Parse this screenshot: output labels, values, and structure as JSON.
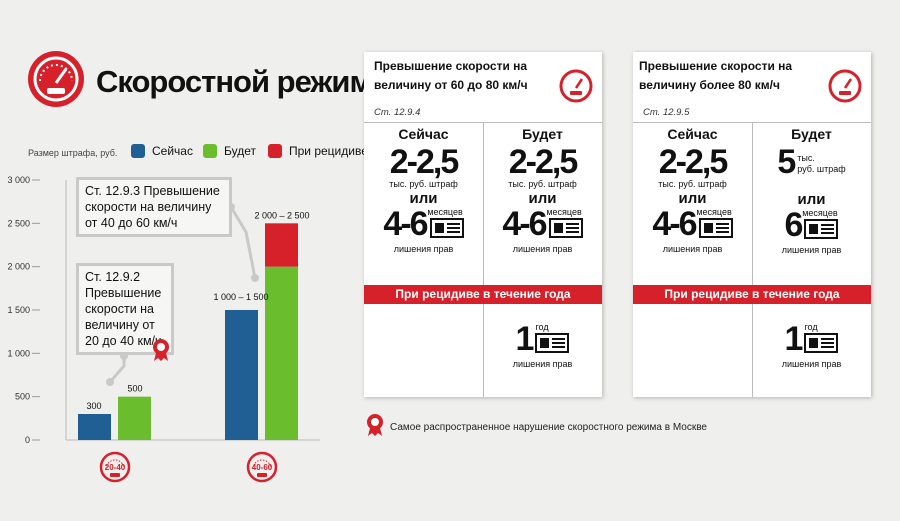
{
  "header": {
    "title": "Скоростной режим"
  },
  "legend": {
    "caption": "Размер штрафа, руб.",
    "items": [
      {
        "label": "Сейчас",
        "color": "#1f5f94"
      },
      {
        "label": "Будет",
        "color": "#6abe2d"
      },
      {
        "label": "При рецидиве",
        "color": "#d6202a"
      }
    ]
  },
  "annotations": [
    {
      "text": "Ст. 12.9.3  Превышение скорости на величину от 40 до 60 км/ч"
    },
    {
      "text": "Ст. 12.9.2  Превышение скорости на величину от 20 до 40 км/ч"
    }
  ],
  "chart_data": {
    "type": "bar",
    "ylim": [
      0,
      3000
    ],
    "yticks": [
      0,
      500,
      1000,
      1500,
      2000,
      2500,
      3000
    ],
    "ytick_labels": [
      "0",
      "500",
      "1 000",
      "1 500",
      "2 000",
      "2 500",
      "3 000"
    ],
    "categories": [
      "20-40",
      "40-60"
    ],
    "series": [
      {
        "name": "Сейчас",
        "color": "#1f5f94",
        "values": [
          300,
          1500
        ]
      },
      {
        "name": "Будет",
        "color": "#6abe2d",
        "values": [
          500,
          2000
        ]
      },
      {
        "name": "При рецидиве",
        "color": "#d6202a",
        "values": [
          null,
          2500
        ],
        "stacked_on": "Будет"
      }
    ],
    "data_labels": [
      "300",
      "500",
      "1 000 – 1 500",
      "2 000 – 2 500"
    ]
  },
  "cards": [
    {
      "heading": "Превышение скорости на величину от 60 до 80 км/ч",
      "article": "Ст. 12.9.4",
      "now": {
        "label": "Сейчас",
        "fine": "2-2,5",
        "fine_unit": "тыс. руб. штраф",
        "or": "или",
        "months": "4-6",
        "months_unit": "месяцев",
        "deprive": "лишения прав"
      },
      "will": {
        "label": "Будет",
        "fine": "2-2,5",
        "fine_unit": "тыс. руб. штраф",
        "or": "или",
        "months": "4-6",
        "months_unit": "месяцев",
        "deprive": "лишения прав"
      },
      "band": "При рецидиве в течение года",
      "repeat": {
        "value": "1",
        "unit": "год",
        "deprive": "лишения прав"
      }
    },
    {
      "heading": "Превышение скорости на величину более 80 км/ч",
      "article": "Ст. 12.9.5",
      "now": {
        "label": "Сейчас",
        "fine": "2-2,5",
        "fine_unit": "тыс. руб. штраф",
        "or": "или",
        "months": "4-6",
        "months_unit": "месяцев",
        "deprive": "лишения прав"
      },
      "will": {
        "label": "Будет",
        "fine": "5",
        "fine_unit_a": "тыс.",
        "fine_unit_b": "руб. штраф",
        "or": "или",
        "months": "6",
        "months_unit": "месяцев",
        "deprive": "лишения прав"
      },
      "band": "При рецидиве в течение года",
      "repeat": {
        "value": "1",
        "unit": "год",
        "deprive": "лишения прав"
      }
    }
  ],
  "footnote": "Самое распространенное нарушение скоростного режима в Москве"
}
